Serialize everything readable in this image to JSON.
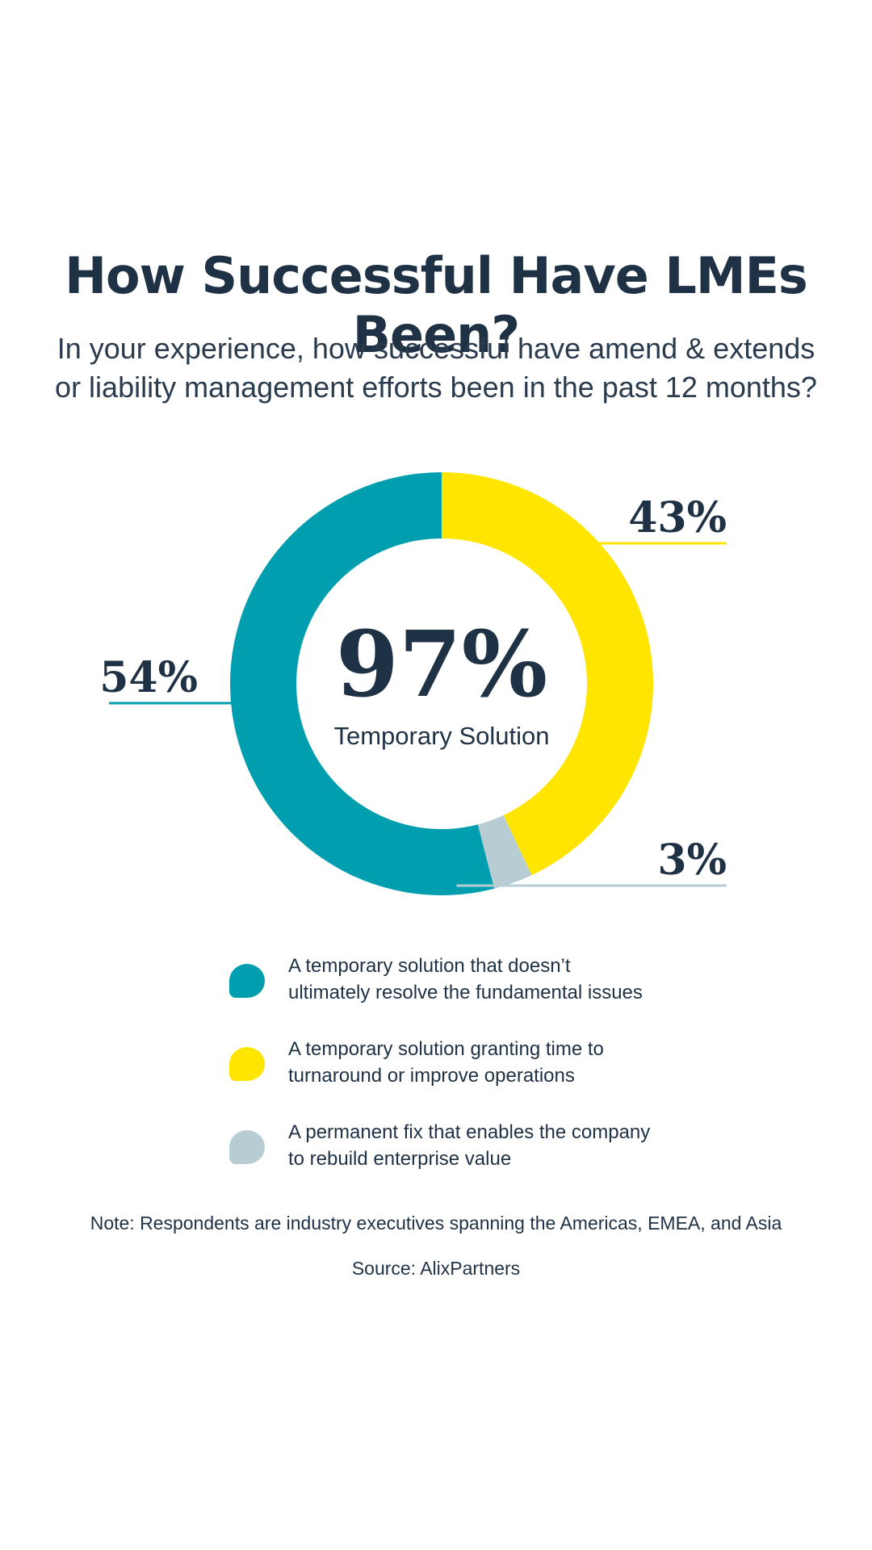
{
  "title": "How Successful Have LMEs Been?",
  "subtitle_lines": [
    "In your experience, how successful have amend & extends",
    "or liability management efforts been in the past 12 months?"
  ],
  "center": {
    "value": "97%",
    "label": "Temporary Solution"
  },
  "chart_data": {
    "type": "pie",
    "donut": true,
    "unit": "%",
    "slices": [
      {
        "label_lines": [
          "A temporary solution that doesn’t",
          "ultimately resolve the fundamental issues"
        ],
        "value": 54,
        "value_label": "54%",
        "color": "#009eaf"
      },
      {
        "label_lines": [
          "A temporary solution granting time to",
          "turnaround or improve operations"
        ],
        "value": 43,
        "value_label": "43%",
        "color": "#ffe500"
      },
      {
        "label_lines": [
          "A permanent fix that enables the company",
          "to rebuild enterprise value"
        ],
        "value": 3,
        "value_label": "3%",
        "color": "#b7cdd3"
      }
    ],
    "start_slice": 1,
    "direction": "clockwise",
    "legend_position": "bottom"
  },
  "note": "Note: Respondents are industry executives spanning the Americas, EMEA, and Asia",
  "source": "Source: AlixPartners",
  "colors": {
    "text": "#1f3144",
    "background": "#ffffff"
  }
}
